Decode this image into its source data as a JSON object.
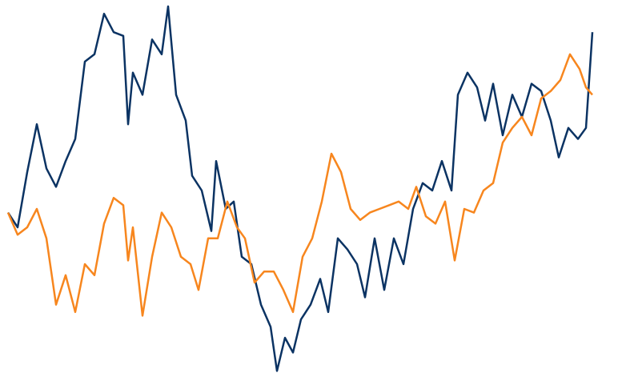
{
  "chart_data": {
    "type": "line",
    "xlim": [
      10,
      740
    ],
    "ylim": [
      0,
      100
    ],
    "series": [
      {
        "color": "#0b3363",
        "x": [
          10,
          22,
          34,
          46,
          58,
          70,
          82,
          94,
          106,
          118,
          130,
          142,
          154,
          160,
          166,
          178,
          190,
          202,
          210,
          220,
          232,
          240,
          252,
          264,
          270,
          282,
          292,
          302,
          314,
          326,
          338,
          346,
          356,
          366,
          376,
          388,
          400,
          410,
          422,
          434,
          446,
          456,
          468,
          480,
          492,
          504,
          516,
          528,
          540,
          552,
          564,
          572,
          584,
          596,
          606,
          616,
          628,
          640,
          652,
          664,
          676,
          688,
          698,
          710,
          722,
          732,
          740
        ],
        "values": [
          44,
          40,
          55,
          68,
          56,
          51,
          58,
          64,
          85,
          87,
          98,
          93,
          92,
          68,
          82,
          76,
          91,
          87,
          100,
          76,
          69,
          54,
          50,
          39,
          58,
          45,
          47,
          32,
          30,
          19,
          13,
          1,
          10,
          6,
          15,
          19,
          26,
          17,
          37,
          34,
          30,
          21,
          37,
          23,
          37,
          30,
          45,
          52,
          50,
          58,
          50,
          76,
          82,
          78,
          69,
          79,
          65,
          76,
          70,
          79,
          77,
          69,
          59,
          67,
          64,
          67,
          93
        ]
      },
      {
        "color": "#f7861e",
        "x": [
          10,
          22,
          34,
          46,
          58,
          70,
          82,
          94,
          106,
          118,
          130,
          142,
          154,
          160,
          166,
          178,
          190,
          202,
          214,
          226,
          238,
          248,
          260,
          272,
          284,
          296,
          306,
          318,
          330,
          342,
          354,
          366,
          378,
          390,
          402,
          414,
          426,
          438,
          450,
          462,
          474,
          486,
          498,
          510,
          520,
          532,
          544,
          556,
          568,
          580,
          592,
          604,
          616,
          628,
          640,
          652,
          664,
          676,
          688,
          700,
          712,
          724,
          732,
          740
        ],
        "values": [
          44,
          38,
          40,
          45,
          37,
          19,
          27,
          17,
          30,
          27,
          41,
          48,
          46,
          31,
          40,
          16,
          32,
          44,
          40,
          32,
          30,
          23,
          37,
          37,
          47,
          40,
          37,
          25,
          28,
          28,
          23,
          17,
          32,
          37,
          47,
          60,
          55,
          45,
          42,
          44,
          45,
          46,
          47,
          45,
          51,
          43,
          41,
          47,
          31,
          45,
          44,
          50,
          52,
          63,
          67,
          70,
          65,
          75,
          77,
          80,
          87,
          83,
          78,
          76
        ]
      }
    ]
  }
}
